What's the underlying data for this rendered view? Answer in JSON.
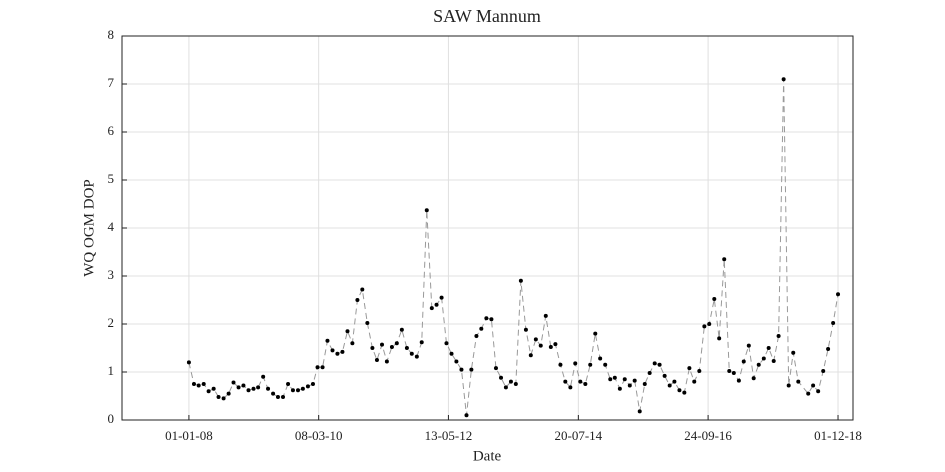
{
  "chart_data": {
    "type": "line",
    "title": "SAW Mannum",
    "xlabel": "Date",
    "ylabel": "WQ OGM DOP",
    "x": [
      "2008-01-01",
      "2008-02-01",
      "2008-03-01",
      "2008-04-01",
      "2008-05-01",
      "2008-06-01",
      "2008-07-01",
      "2008-08-01",
      "2008-09-01",
      "2008-10-01",
      "2008-11-01",
      "2008-12-01",
      "2009-01-01",
      "2009-02-01",
      "2009-03-01",
      "2009-04-01",
      "2009-05-01",
      "2009-06-01",
      "2009-07-01",
      "2009-08-01",
      "2009-09-01",
      "2009-10-01",
      "2009-11-01",
      "2009-12-01",
      "2010-01-01",
      "2010-02-01",
      "2010-03-01",
      "2010-04-01",
      "2010-05-01",
      "2010-06-01",
      "2010-07-01",
      "2010-08-01",
      "2010-09-01",
      "2010-10-01",
      "2010-11-01",
      "2010-12-01",
      "2011-01-01",
      "2011-02-01",
      "2011-03-01",
      "2011-04-01",
      "2011-05-01",
      "2011-06-01",
      "2011-07-01",
      "2011-08-01",
      "2011-09-01",
      "2011-10-01",
      "2011-11-01",
      "2011-12-01",
      "2012-01-01",
      "2012-02-01",
      "2012-03-01",
      "2012-04-01",
      "2012-05-01",
      "2012-06-01",
      "2012-07-01",
      "2012-08-01",
      "2012-09-01",
      "2012-10-01",
      "2012-11-01",
      "2012-12-01",
      "2013-01-01",
      "2013-02-01",
      "2013-03-01",
      "2013-04-01",
      "2013-05-01",
      "2013-06-01",
      "2013-07-01",
      "2013-08-01",
      "2013-09-01",
      "2013-10-01",
      "2013-11-01",
      "2013-12-01",
      "2014-01-01",
      "2014-02-01",
      "2014-03-01",
      "2014-04-01",
      "2014-05-01",
      "2014-06-01",
      "2014-07-01",
      "2014-08-01",
      "2014-09-01",
      "2014-10-01",
      "2014-11-01",
      "2014-12-01",
      "2015-01-01",
      "2015-02-01",
      "2015-03-01",
      "2015-04-01",
      "2015-05-01",
      "2015-06-01",
      "2015-07-01",
      "2015-08-01",
      "2015-09-01",
      "2015-10-01",
      "2015-11-01",
      "2015-12-01",
      "2016-01-01",
      "2016-02-01",
      "2016-03-01",
      "2016-04-01",
      "2016-05-01",
      "2016-06-01",
      "2016-07-01",
      "2016-08-01",
      "2016-09-01",
      "2016-10-01",
      "2016-11-01",
      "2016-12-01",
      "2017-01-01",
      "2017-02-01",
      "2017-03-01",
      "2017-04-01",
      "2017-05-01",
      "2017-06-01",
      "2017-07-01",
      "2017-08-01",
      "2017-09-01",
      "2017-10-01",
      "2017-11-01",
      "2017-12-01",
      "2018-01-01",
      "2018-02-01",
      "2018-03-01",
      "2018-04-01",
      "2018-06-01",
      "2018-07-01",
      "2018-08-01",
      "2018-09-01",
      "2018-10-01",
      "2018-11-01",
      "2018-12-01"
    ],
    "series": [
      {
        "name": "WQ OGM DOP",
        "color": "#000000",
        "line_color": "#999999",
        "values": [
          1.2,
          0.75,
          0.72,
          0.75,
          0.6,
          0.65,
          0.48,
          0.45,
          0.55,
          0.78,
          0.68,
          0.72,
          0.62,
          0.65,
          0.68,
          0.9,
          0.65,
          0.55,
          0.48,
          0.48,
          0.75,
          0.62,
          0.62,
          0.65,
          0.7,
          0.75,
          1.1,
          1.1,
          1.65,
          1.45,
          1.38,
          1.42,
          1.85,
          1.6,
          2.5,
          2.72,
          2.02,
          1.5,
          1.25,
          1.57,
          1.22,
          1.52,
          1.6,
          1.88,
          1.5,
          1.38,
          1.32,
          1.62,
          4.37,
          2.33,
          2.4,
          2.55,
          1.6,
          1.38,
          1.22,
          1.05,
          0.1,
          1.05,
          1.75,
          1.9,
          2.12,
          2.1,
          1.08,
          0.88,
          0.68,
          0.8,
          0.75,
          2.9,
          1.88,
          1.35,
          1.68,
          1.55,
          2.17,
          1.52,
          1.58,
          1.15,
          0.8,
          0.68,
          1.18,
          0.8,
          0.75,
          1.15,
          1.8,
          1.28,
          1.15,
          0.85,
          0.88,
          0.65,
          0.85,
          0.72,
          0.82,
          0.18,
          0.75,
          0.98,
          1.18,
          1.15,
          0.92,
          0.72,
          0.8,
          0.62,
          0.57,
          1.08,
          0.8,
          1.02,
          1.95,
          2.0,
          2.52,
          1.7,
          3.35,
          1.02,
          0.98,
          0.82,
          1.22,
          1.55,
          0.87,
          1.15,
          1.28,
          1.5,
          1.23,
          1.75,
          7.1,
          0.72,
          1.4,
          0.8,
          0.55,
          0.72,
          0.6,
          1.02,
          1.48,
          2.02,
          2.62
        ]
      }
    ],
    "xlim": [
      "2006-11-16",
      "2019-03-03"
    ],
    "xticks": [
      {
        "value": "2008-01-01",
        "label": "01-01-08"
      },
      {
        "value": "2010-03-08",
        "label": "08-03-10"
      },
      {
        "value": "2012-05-13",
        "label": "13-05-12"
      },
      {
        "value": "2014-07-20",
        "label": "20-07-14"
      },
      {
        "value": "2016-09-24",
        "label": "24-09-16"
      },
      {
        "value": "2018-12-01",
        "label": "01-12-18"
      }
    ],
    "ylim": [
      0,
      8
    ],
    "yticks": [
      0,
      1,
      2,
      3,
      4,
      5,
      6,
      7,
      8
    ],
    "grid": true
  }
}
